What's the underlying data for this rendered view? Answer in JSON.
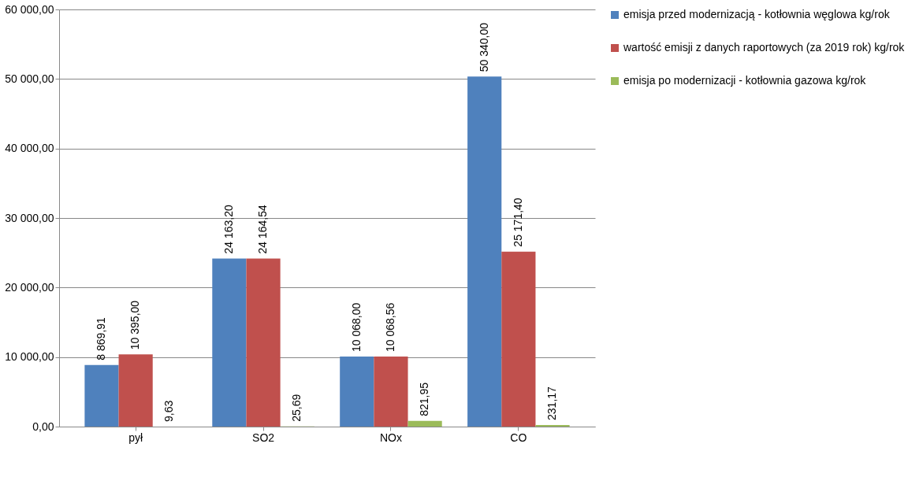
{
  "chart_data": {
    "type": "bar",
    "categories": [
      "pył",
      "SO2",
      "NOx",
      "CO"
    ],
    "series": [
      {
        "name": "emisja przed modernizacją - kotłownia węglowa kg/rok",
        "color": "#4f81bd",
        "values": [
          8869.91,
          24163.2,
          10068.0,
          50340.0
        ],
        "value_labels": [
          "8 869,91",
          "24 163,20",
          "10 068,00",
          "50 340,00"
        ]
      },
      {
        "name": "wartość emisji z danych raportowych (za 2019 rok) kg/rok",
        "color": "#c0504d",
        "values": [
          10395.0,
          24164.54,
          10068.56,
          25171.4
        ],
        "value_labels": [
          "10 395,00",
          "24 164,54",
          "10 068,56",
          "25 171,40"
        ]
      },
      {
        "name": "emisja po modernizacji - kotłownia gazowa kg/rok",
        "color": "#9bbb59",
        "values": [
          9.63,
          25.69,
          821.95,
          231.17
        ],
        "value_labels": [
          "9,63",
          "25,69",
          "821,95",
          "231,17"
        ]
      }
    ],
    "ylim": [
      0,
      60000
    ],
    "yticks": [
      {
        "value": 0,
        "label": "0,00"
      },
      {
        "value": 10000,
        "label": "10 000,00"
      },
      {
        "value": 20000,
        "label": "20 000,00"
      },
      {
        "value": 30000,
        "label": "30 000,00"
      },
      {
        "value": 40000,
        "label": "40 000,00"
      },
      {
        "value": 50000,
        "label": "50 000,00"
      },
      {
        "value": 60000,
        "label": "60 000,00"
      }
    ],
    "grid": "y",
    "legend": "right"
  }
}
